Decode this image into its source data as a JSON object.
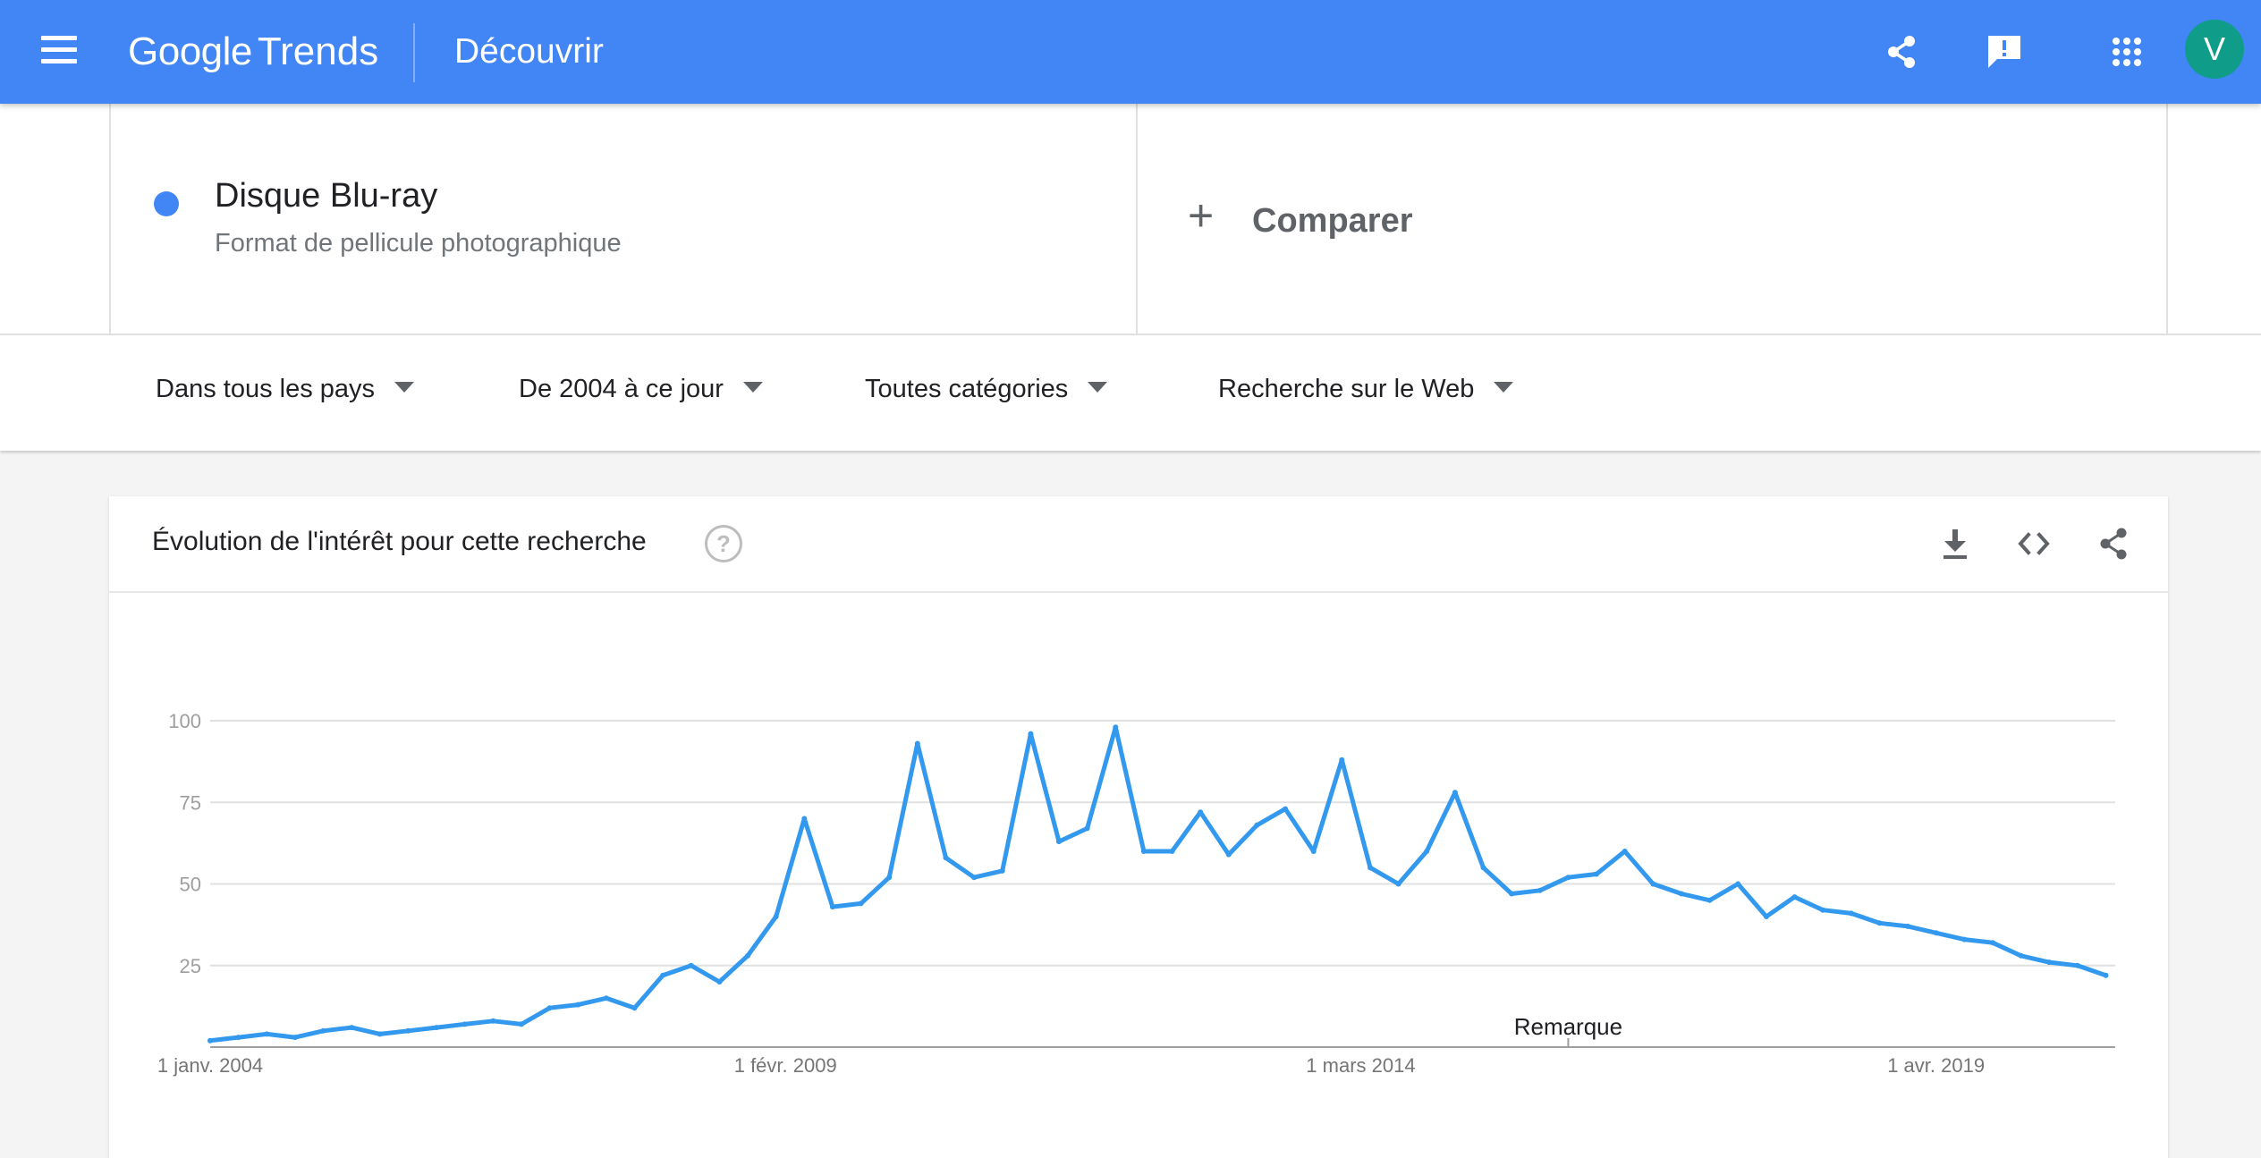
{
  "appbar": {
    "logo_google": "Google",
    "logo_trends": "Trends",
    "page_title": "Découvrir",
    "icons": [
      "menu-icon",
      "share-icon",
      "feedback-icon",
      "apps-icon"
    ],
    "avatar_letter": "V",
    "colors": {
      "bar": "#4285f4",
      "avatar": "#0f9d8a"
    }
  },
  "search_term": {
    "name": "Disque Blu-ray",
    "type": "Format de pellicule photographique",
    "color": "#4285f4"
  },
  "compare": {
    "label": "Comparer"
  },
  "filters": {
    "region": "Dans tous les pays",
    "period": "De 2004 à ce jour",
    "category": "Toutes catégories",
    "search_type": "Recherche sur le Web"
  },
  "chart_card": {
    "title": "Évolution de l'intérêt pour cette recherche",
    "icons": [
      "help-icon",
      "download-icon",
      "embed-icon",
      "share-icon"
    ]
  },
  "chart_data": {
    "type": "line",
    "title": "",
    "xlabel": "",
    "ylabel": "",
    "ylim": [
      0,
      100
    ],
    "yticks": [
      25,
      50,
      75,
      100
    ],
    "xticks": [
      {
        "label": "1 janv. 2004",
        "x": "2004-01"
      },
      {
        "label": "1 févr. 2009",
        "x": "2009-02"
      },
      {
        "label": "1 mars 2014",
        "x": "2014-03"
      },
      {
        "label": "1 avr. 2019",
        "x": "2019-04"
      }
    ],
    "annotation": {
      "label": "Remarque",
      "x": "2016-01"
    },
    "grid": true,
    "color": "#3399ee",
    "x": [
      "2004-01",
      "2004-04",
      "2004-07",
      "2004-10",
      "2005-01",
      "2005-04",
      "2005-07",
      "2005-10",
      "2006-01",
      "2006-04",
      "2006-07",
      "2006-10",
      "2007-01",
      "2007-04",
      "2007-07",
      "2007-10",
      "2008-01",
      "2008-04",
      "2008-07",
      "2008-10",
      "2009-01",
      "2009-04",
      "2009-07",
      "2009-10",
      "2010-01",
      "2010-04",
      "2010-07",
      "2010-10",
      "2011-01",
      "2011-04",
      "2011-07",
      "2011-10",
      "2012-01",
      "2012-04",
      "2012-07",
      "2012-10",
      "2013-01",
      "2013-04",
      "2013-07",
      "2013-10",
      "2014-01",
      "2014-04",
      "2014-07",
      "2014-10",
      "2015-01",
      "2015-04",
      "2015-07",
      "2015-10",
      "2016-01",
      "2016-04",
      "2016-07",
      "2016-10",
      "2017-01",
      "2017-04",
      "2017-07",
      "2017-10",
      "2018-01",
      "2018-04",
      "2018-07",
      "2018-10",
      "2019-01",
      "2019-04",
      "2019-07",
      "2019-10",
      "2020-01",
      "2020-04",
      "2020-07",
      "2020-10"
    ],
    "series": [
      {
        "values": [
          2,
          3,
          4,
          3,
          5,
          6,
          4,
          5,
          6,
          7,
          8,
          7,
          12,
          13,
          15,
          12,
          22,
          25,
          20,
          28,
          40,
          70,
          43,
          44,
          52,
          93,
          58,
          52,
          54,
          96,
          63,
          67,
          98,
          60,
          60,
          72,
          59,
          68,
          73,
          60,
          88,
          55,
          50,
          60,
          78,
          55,
          47,
          48,
          52,
          53,
          60,
          50,
          47,
          45,
          50,
          40,
          46,
          42,
          41,
          38,
          37,
          35,
          33,
          32,
          28,
          26,
          25,
          22
        ]
      }
    ]
  }
}
